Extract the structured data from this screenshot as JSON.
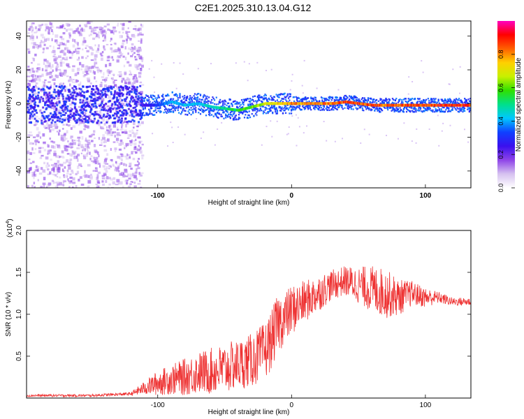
{
  "title": "C2E1.2025.310.13.04.G12",
  "chart_data": [
    {
      "type": "heatmap",
      "name": "spectrogram",
      "xlabel": "Height of straight line (km)",
      "ylabel": "Frequency (Hz)",
      "xlim": [
        -198,
        134
      ],
      "ylim": [
        -50,
        49
      ],
      "xticks": [
        -100,
        0,
        100
      ],
      "xtick_labels": [
        "-100",
        "0",
        "100"
      ],
      "yticks": [
        -40,
        -20,
        0,
        20,
        40
      ],
      "ytick_labels": [
        "-40",
        "-20",
        "0",
        "20",
        "40"
      ],
      "ridge_track": {
        "x": [
          -112,
          -100,
          -90,
          -80,
          -70,
          -60,
          -50,
          -40,
          -30,
          -20,
          -10,
          0,
          10,
          20,
          30,
          40,
          50,
          60,
          70,
          80,
          90,
          100,
          110,
          120,
          130
        ],
        "frequency": [
          -1,
          -1,
          1,
          -1,
          0,
          -2,
          -3,
          -4,
          -2,
          0,
          0,
          0,
          0,
          0,
          0,
          1,
          0,
          -1,
          -1,
          -1,
          -1,
          -1,
          -1,
          -1,
          -1
        ],
        "amplitude": [
          0.25,
          0.35,
          0.45,
          0.45,
          0.45,
          0.5,
          0.55,
          0.6,
          0.65,
          0.75,
          0.8,
          0.85,
          0.85,
          0.85,
          0.9,
          0.95,
          0.95,
          0.9,
          0.9,
          0.9,
          0.92,
          0.92,
          0.95,
          0.95,
          0.95
        ]
      },
      "noise_region": {
        "x_range": [
          -198,
          -112
        ],
        "frequency_range": [
          -50,
          49
        ],
        "amplitude": 0.15
      }
    },
    {
      "type": "line",
      "name": "snr",
      "xlabel": "Height of straight line (km)",
      "ylabel": "SNR (10 * v/v)",
      "y_exponent_label": "(x10",
      "y_exponent": "4",
      "xlim": [
        -198,
        134
      ],
      "ylim": [
        0,
        20000
      ],
      "xticks": [
        -100,
        0,
        100
      ],
      "xtick_labels": [
        "-100",
        "0",
        "100"
      ],
      "yticks": [
        5000,
        10000,
        15000,
        20000
      ],
      "ytick_labels": [
        "0.5",
        "1.0",
        "1.5",
        "2.0"
      ],
      "color": "#ee3333",
      "series": [
        {
          "name": "SNR",
          "x": [
            -198,
            -150,
            -120,
            -110,
            -100,
            -90,
            -80,
            -70,
            -60,
            -50,
            -40,
            -30,
            -20,
            -15,
            -10,
            -5,
            0,
            5,
            10,
            20,
            30,
            40,
            50,
            60,
            70,
            80,
            90,
            100,
            110,
            120,
            134
          ],
          "y": [
            300,
            300,
            500,
            1200,
            1800,
            2200,
            2500,
            3000,
            3200,
            3500,
            4000,
            4500,
            5500,
            7000,
            9000,
            9500,
            10500,
            11000,
            11500,
            12500,
            13500,
            14000,
            13500,
            13000,
            12500,
            12000,
            12500,
            12000,
            12000,
            11500,
            11500
          ],
          "spread": [
            150,
            150,
            200,
            800,
            1500,
            1800,
            2200,
            2500,
            2800,
            3000,
            3000,
            3200,
            3500,
            3500,
            3500,
            3200,
            3000,
            2800,
            2500,
            2200,
            1800,
            1800,
            2200,
            2800,
            3000,
            2200,
            1500,
            1200,
            700,
            500,
            500
          ]
        }
      ]
    },
    {
      "type": "colorbar",
      "name": "amplitude-colorbar",
      "label": "Normalized spectral amplitude",
      "range": [
        0,
        1
      ],
      "ticks": [
        0.0,
        0.2,
        0.4,
        0.6,
        0.8
      ],
      "tick_labels": [
        "0.0",
        "0.2",
        "0.4",
        "0.6",
        "0.8"
      ],
      "stops": [
        "#ffffff",
        "#d6c2f0",
        "#8e44e8",
        "#3a10ee",
        "#1040ff",
        "#00c8ff",
        "#00e08a",
        "#30e000",
        "#c8f000",
        "#ffd000",
        "#ff6000",
        "#ff0000",
        "#ff00c0"
      ]
    }
  ]
}
